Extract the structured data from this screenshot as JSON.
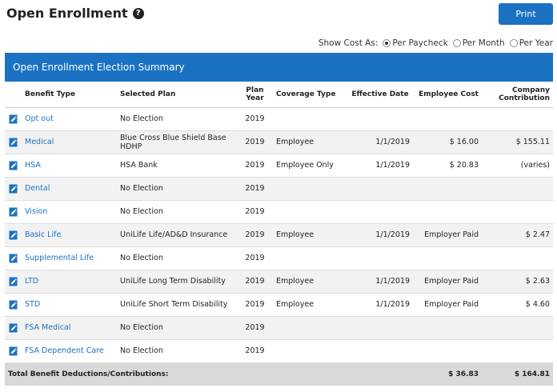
{
  "page": {
    "title": "Open Enrollment",
    "print_label": "Print"
  },
  "cost_toggle": {
    "label": "Show Cost As:",
    "options": [
      "Per Paycheck",
      "Per Month",
      "Per Year"
    ],
    "selected": "Per Paycheck"
  },
  "panel": {
    "title": "Open Enrollment Election Summary"
  },
  "table": {
    "headers": {
      "benefit_type": "Benefit Type",
      "selected_plan": "Selected Plan",
      "plan_year": "Plan Year",
      "coverage_type": "Coverage Type",
      "effective_date": "Effective Date",
      "employee_cost": "Employee Cost",
      "company_contribution": "Company Contribution"
    },
    "rows": [
      {
        "benefit": "Opt out",
        "plan": "No Election",
        "year": "2019",
        "coverage": "",
        "date": "",
        "employee_cost": "",
        "company": ""
      },
      {
        "benefit": "Medical",
        "plan": "Blue Cross Blue Shield Base HDHP",
        "year": "2019",
        "coverage": "Employee",
        "date": "1/1/2019",
        "employee_cost": "$ 16.00",
        "company": "$ 155.11"
      },
      {
        "benefit": "HSA",
        "plan": "HSA Bank",
        "year": "2019",
        "coverage": "Employee Only",
        "date": "1/1/2019",
        "employee_cost": "$ 20.83",
        "company": "(varies)"
      },
      {
        "benefit": "Dental",
        "plan": "No Election",
        "year": "2019",
        "coverage": "",
        "date": "",
        "employee_cost": "",
        "company": ""
      },
      {
        "benefit": "Vision",
        "plan": "No Election",
        "year": "2019",
        "coverage": "",
        "date": "",
        "employee_cost": "",
        "company": ""
      },
      {
        "benefit": "Basic Life",
        "plan": "UniLife Life/AD&D Insurance",
        "year": "2019",
        "coverage": "Employee",
        "date": "1/1/2019",
        "employee_cost": "Employer Paid",
        "company": "$ 2.47"
      },
      {
        "benefit": "Supplemental Life",
        "plan": "No Election",
        "year": "2019",
        "coverage": "",
        "date": "",
        "employee_cost": "",
        "company": ""
      },
      {
        "benefit": "LTD",
        "plan": "UniLife Long Term Disability",
        "year": "2019",
        "coverage": "Employee",
        "date": "1/1/2019",
        "employee_cost": "Employer Paid",
        "company": "$ 2.63"
      },
      {
        "benefit": "STD",
        "plan": "UniLife Short Term Disability",
        "year": "2019",
        "coverage": "Employee",
        "date": "1/1/2019",
        "employee_cost": "Employer Paid",
        "company": "$ 4.60"
      },
      {
        "benefit": "FSA Medical",
        "plan": "No Election",
        "year": "2019",
        "coverage": "",
        "date": "",
        "employee_cost": "",
        "company": ""
      },
      {
        "benefit": "FSA Dependent Care",
        "plan": "No Election",
        "year": "2019",
        "coverage": "",
        "date": "",
        "employee_cost": "",
        "company": ""
      }
    ],
    "total": {
      "label": "Total Benefit Deductions/Contributions:",
      "employee_cost": "$ 36.83",
      "company": "$ 164.81"
    }
  },
  "icons": {
    "help": "question-circle-icon",
    "edit": "edit-document-icon"
  },
  "colors": {
    "accent": "#1b72c2",
    "total_row_bg": "#d9d9d9",
    "stripe_bg": "#f2f2f2"
  }
}
